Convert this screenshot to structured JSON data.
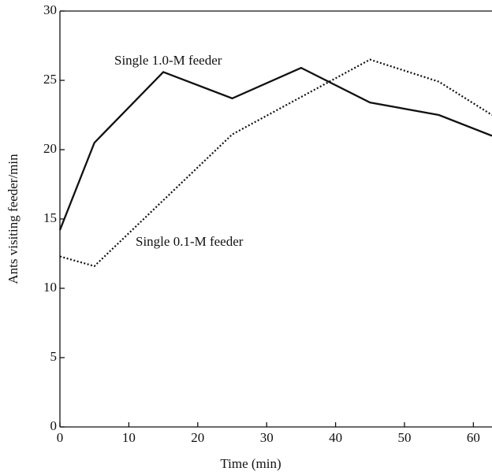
{
  "chart_data": {
    "type": "line",
    "xlabel": "Time (min)",
    "ylabel": "Ants visiting feeder/min",
    "series": [
      {
        "name": "Single 1.0-M feeder",
        "color": "#111111",
        "style": "solid",
        "x": [
          0,
          5,
          15,
          25,
          35,
          45,
          55,
          62.7
        ],
        "values": [
          14.2,
          20.5,
          25.6,
          23.7,
          25.9,
          23.4,
          22.5,
          21.0
        ]
      },
      {
        "name": "Single 0.1-M feeder",
        "color": "#111111",
        "style": "dotted",
        "x": [
          0,
          5,
          25,
          45,
          55,
          62.7
        ],
        "values": [
          12.3,
          11.6,
          21.1,
          26.5,
          24.9,
          22.5
        ]
      }
    ],
    "xlim": [
      0,
      62.7
    ],
    "xticks": [
      0,
      10,
      20,
      30,
      40,
      50,
      60
    ],
    "ylim": [
      0,
      30
    ],
    "yticks": [
      0,
      5,
      10,
      15,
      20,
      25,
      30
    ]
  }
}
